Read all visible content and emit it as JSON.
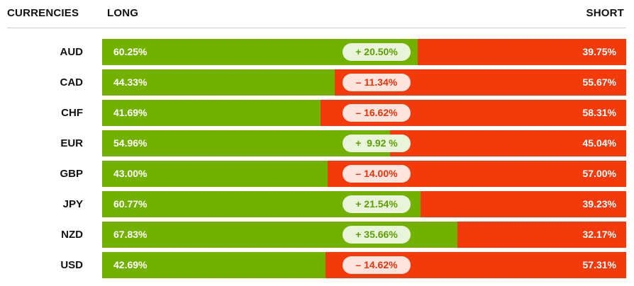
{
  "header": {
    "currencies": "CURRENCIES",
    "long": "LONG",
    "short": "SHORT"
  },
  "colors": {
    "long": "#73b100",
    "short": "#f23a0b",
    "positive_text": "#5aa000",
    "negative_text": "#e8330b"
  },
  "rows": [
    {
      "currency": "AUD",
      "long": "60.25%",
      "short": "39.75%",
      "long_fraction": 0.6025,
      "diff": "+ 20.50%",
      "direction": "positive"
    },
    {
      "currency": "CAD",
      "long": "44.33%",
      "short": "55.67%",
      "long_fraction": 0.4433,
      "diff": "– 11.34%",
      "direction": "negative"
    },
    {
      "currency": "CHF",
      "long": "41.69%",
      "short": "58.31%",
      "long_fraction": 0.4169,
      "diff": "– 16.62%",
      "direction": "negative"
    },
    {
      "currency": "EUR",
      "long": "54.96%",
      "short": "45.04%",
      "long_fraction": 0.5496,
      "diff": "+  9.92 %",
      "direction": "positive"
    },
    {
      "currency": "GBP",
      "long": "43.00%",
      "short": "57.00%",
      "long_fraction": 0.43,
      "diff": "– 14.00%",
      "direction": "negative"
    },
    {
      "currency": "JPY",
      "long": "60.77%",
      "short": "39.23%",
      "long_fraction": 0.6077,
      "diff": "+ 21.54%",
      "direction": "positive"
    },
    {
      "currency": "NZD",
      "long": "67.83%",
      "short": "32.17%",
      "long_fraction": 0.6783,
      "diff": "+ 35.66%",
      "direction": "positive"
    },
    {
      "currency": "USD",
      "long": "42.69%",
      "short": "57.31%",
      "long_fraction": 0.4269,
      "diff": "– 14.62%",
      "direction": "negative"
    }
  ]
}
